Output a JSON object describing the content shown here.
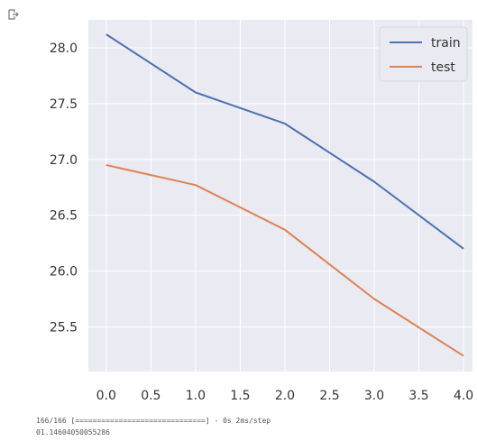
{
  "output_icon": "output-arrow-icon",
  "chart_data": {
    "type": "line",
    "x": [
      0.0,
      1.0,
      2.0,
      3.0,
      4.0
    ],
    "series": [
      {
        "name": "train",
        "color": "#4c72b0",
        "values": [
          28.12,
          27.6,
          27.32,
          26.8,
          26.2
        ]
      },
      {
        "name": "test",
        "color": "#dd8452",
        "values": [
          26.95,
          26.77,
          26.37,
          25.75,
          25.24
        ]
      }
    ],
    "xticks": [
      "0.0",
      "0.5",
      "1.0",
      "1.5",
      "2.0",
      "2.5",
      "3.0",
      "3.5",
      "4.0"
    ],
    "yticks": [
      "25.5",
      "26.0",
      "26.5",
      "27.0",
      "27.5",
      "28.0"
    ],
    "xlim": [
      -0.2,
      4.1
    ],
    "ylim": [
      25.1,
      28.25
    ],
    "grid": true,
    "background": "#eaeaf2",
    "legend_position": "top-right"
  },
  "console": {
    "line1": "166/166 [==============================] - 0s 2ms/step",
    "line2": "01.14604050055286"
  }
}
